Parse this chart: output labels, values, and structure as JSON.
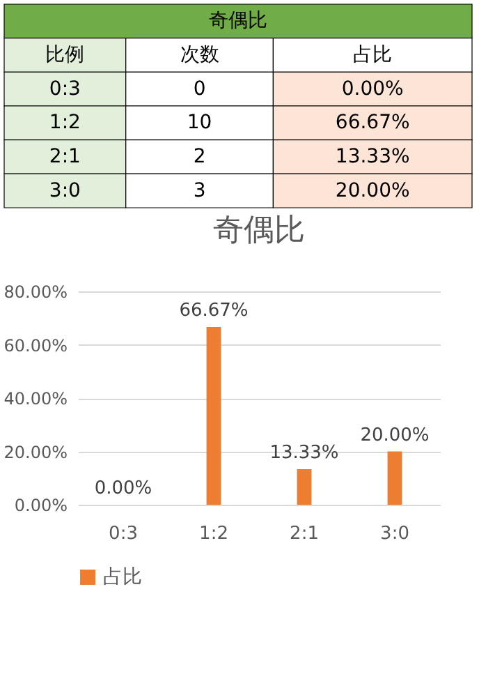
{
  "chart_data": [
    {
      "type": "other",
      "title": "奇偶比",
      "ylabel": "比例",
      "categories": [
        "次数",
        "占比"
      ],
      "y_categories": [
        "0:3",
        "1:2",
        "2:1",
        "3:0"
      ],
      "cell_labels": [
        [
          "0",
          "0.00%"
        ],
        [
          "10",
          "66.67%"
        ],
        [
          "2",
          "13.33%"
        ],
        [
          "3",
          "20.00%"
        ]
      ]
    },
    {
      "type": "bar",
      "title": "奇偶比",
      "categories": [
        "0:3",
        "1:2",
        "2:1",
        "3:0"
      ],
      "series": [
        {
          "name": "占比",
          "color": "#ed7d31",
          "values": [
            0,
            66.67,
            13.33,
            20
          ],
          "value_labels": [
            "0.00%",
            "66.67%",
            "13.33%",
            "20.00%"
          ]
        }
      ],
      "ylim": [
        0,
        80
      ],
      "yticks": [
        {
          "value": 0,
          "label": "0.00%"
        },
        {
          "value": 20,
          "label": "20.00%"
        },
        {
          "value": 40,
          "label": "40.00%"
        },
        {
          "value": 60,
          "label": "60.00%"
        },
        {
          "value": 80,
          "label": "80.00%"
        }
      ],
      "grid": "y",
      "legend": "bottom"
    }
  ]
}
